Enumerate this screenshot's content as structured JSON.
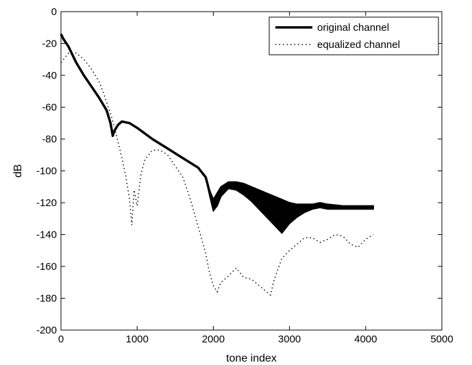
{
  "chart_data": {
    "type": "line",
    "title": "",
    "xlabel": "tone index",
    "ylabel": "dB",
    "xlim": [
      0,
      5000
    ],
    "ylim": [
      -200,
      0
    ],
    "x_ticks": [
      "0",
      "1000",
      "2000",
      "3000",
      "4000",
      "5000"
    ],
    "y_ticks": [
      "0",
      "-20",
      "-40",
      "-60",
      "-80",
      "-100",
      "-120",
      "-140",
      "-160",
      "-180",
      "-200"
    ],
    "grid": false,
    "legend_position": "top-right",
    "series": [
      {
        "name": "original channel",
        "style": "solid-thick",
        "color": "#000000",
        "x": [
          0,
          30,
          100,
          200,
          300,
          400,
          500,
          600,
          650,
          680,
          700,
          750,
          800,
          900,
          1000,
          1200,
          1400,
          1600,
          1800,
          1900,
          1950,
          2000,
          2050,
          2100,
          2200,
          2300,
          2400,
          2500,
          2600,
          2700,
          2800,
          2900,
          3000,
          3100,
          3200,
          3300,
          3400,
          3500,
          3700,
          3900,
          4100
        ],
        "values": [
          -14,
          -17,
          -22,
          -32,
          -40,
          -47,
          -54,
          -62,
          -70,
          -78,
          -75,
          -71,
          -69,
          -70,
          -73,
          -80,
          -86,
          -92,
          -98,
          -104,
          -113,
          -120,
          -118,
          -113,
          -109,
          -109,
          -111,
          -114,
          -118,
          -122,
          -130,
          -136,
          -128,
          -125,
          -123,
          -122,
          -121,
          -122,
          -123,
          -123,
          -123
        ],
        "envelope_upper": [
          -14,
          -17,
          -22,
          -32,
          -40,
          -47,
          -54,
          -62,
          -70,
          -78,
          -75,
          -71,
          -69,
          -70,
          -73,
          -80,
          -86,
          -92,
          -98,
          -104,
          -112,
          -118,
          -114,
          -110,
          -107,
          -107,
          -108,
          -110,
          -112,
          -114,
          -116,
          -118,
          -120,
          -121,
          -121,
          -121,
          -120,
          -121,
          -122,
          -122,
          -122
        ],
        "envelope_lower": [
          -14,
          -17,
          -22,
          -32,
          -40,
          -47,
          -54,
          -62,
          -70,
          -78,
          -75,
          -71,
          -69,
          -70,
          -73,
          -80,
          -86,
          -92,
          -98,
          -104,
          -115,
          -125,
          -122,
          -116,
          -111,
          -112,
          -115,
          -119,
          -124,
          -129,
          -134,
          -139,
          -133,
          -129,
          -126,
          -124,
          -123,
          -124,
          -124,
          -124,
          -124
        ]
      },
      {
        "name": "equalized channel",
        "style": "dotted",
        "color": "#000000",
        "x": [
          0,
          100,
          200,
          300,
          400,
          500,
          550,
          600,
          650,
          700,
          750,
          800,
          850,
          900,
          930,
          960,
          1000,
          1050,
          1100,
          1200,
          1300,
          1400,
          1600,
          1700,
          1800,
          1900,
          1950,
          2000,
          2050,
          2100,
          2200,
          2300,
          2400,
          2500,
          2600,
          2700,
          2750,
          2800,
          2900,
          3000,
          3100,
          3200,
          3300,
          3400,
          3500,
          3600,
          3700,
          3800,
          3900,
          4000,
          4100
        ],
        "values": [
          -32,
          -26,
          -26,
          -30,
          -36,
          -44,
          -50,
          -57,
          -64,
          -72,
          -82,
          -92,
          -103,
          -118,
          -134,
          -112,
          -122,
          -102,
          -93,
          -87,
          -87,
          -90,
          -104,
          -118,
          -135,
          -152,
          -164,
          -172,
          -176,
          -170,
          -166,
          -161,
          -167,
          -168,
          -172,
          -176,
          -178,
          -168,
          -155,
          -150,
          -146,
          -142,
          -142,
          -145,
          -143,
          -140,
          -141,
          -146,
          -148,
          -143,
          -140
        ]
      }
    ]
  }
}
